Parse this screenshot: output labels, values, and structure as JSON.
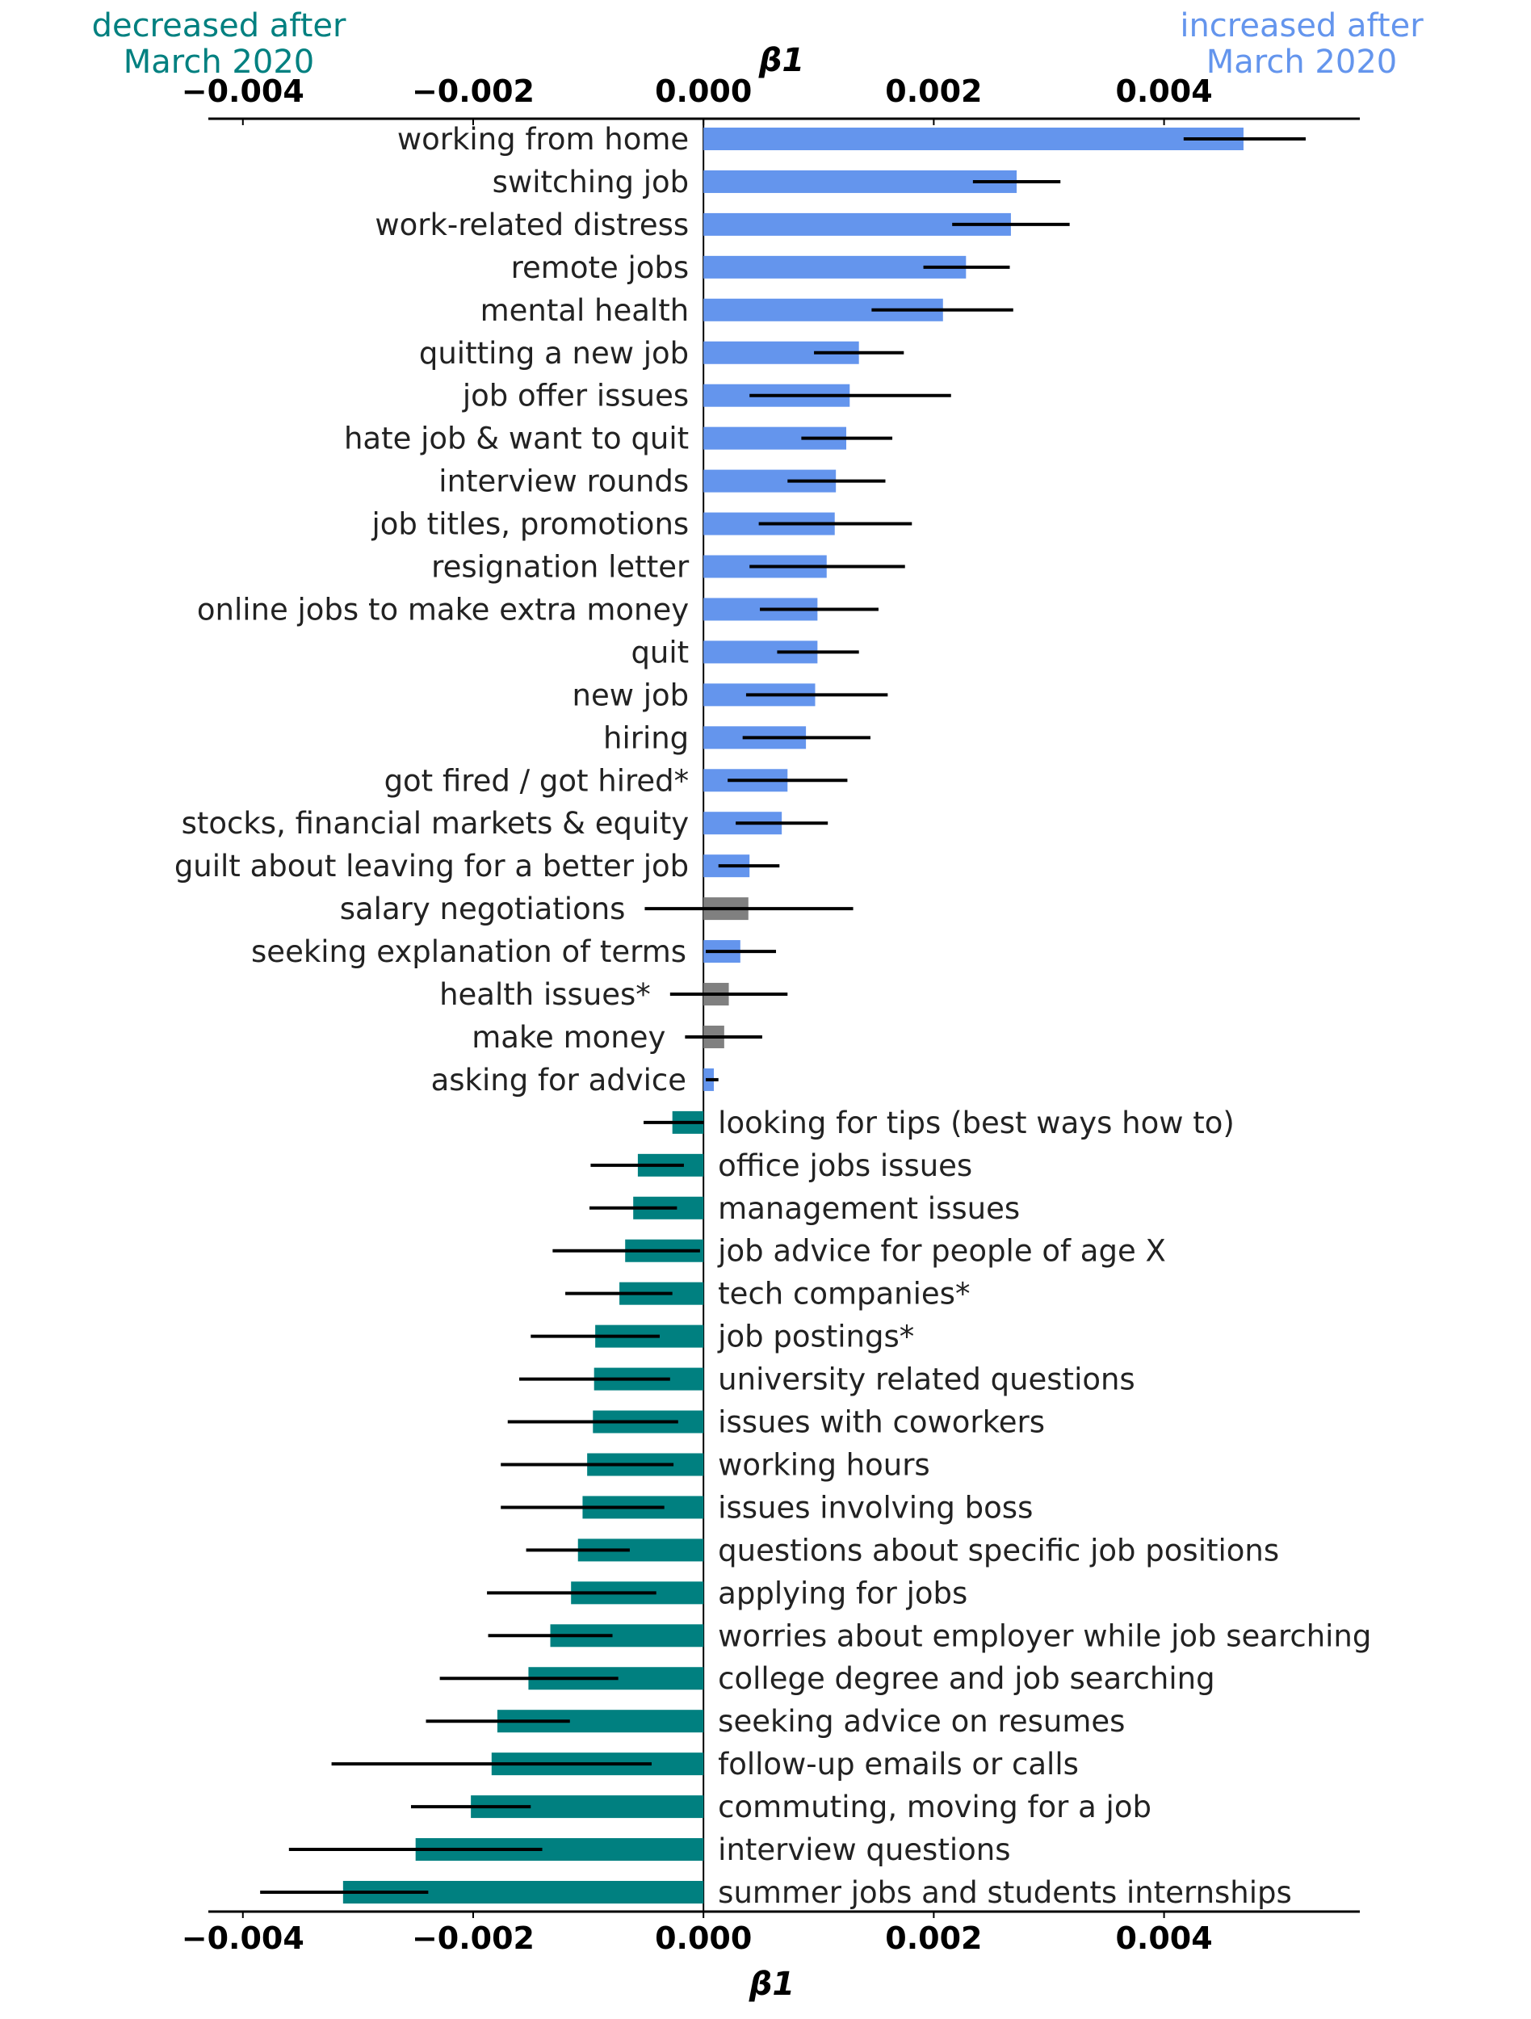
{
  "chart_data": {
    "type": "bar",
    "orientation": "horizontal",
    "xlabel": "β1",
    "xlim": [
      -0.0043,
      0.0057
    ],
    "xticks": [
      "−0.004",
      "−0.002",
      "0.000",
      "0.002",
      "0.004"
    ],
    "xtick_values": [
      -0.004,
      -0.002,
      0.0,
      0.002,
      0.004
    ],
    "grid": false,
    "annotations": {
      "decreased": [
        "decreased after",
        "March 2020"
      ],
      "increased": [
        "increased after",
        "March 2020"
      ]
    },
    "colors": {
      "increased": "#6495ED",
      "decreased": "#008080",
      "not_significant": "#808080",
      "error_bar": "#000000"
    },
    "categories": [
      {
        "label": "working from home",
        "value": 0.00469,
        "ci": [
          0.00417,
          0.00523
        ],
        "group": "increased"
      },
      {
        "label": "switching job",
        "value": 0.00272,
        "ci": [
          0.00234,
          0.0031
        ],
        "group": "increased"
      },
      {
        "label": "work-related distress",
        "value": 0.00267,
        "ci": [
          0.00216,
          0.00318
        ],
        "group": "increased"
      },
      {
        "label": "remote jobs",
        "value": 0.00228,
        "ci": [
          0.00191,
          0.00266
        ],
        "group": "increased"
      },
      {
        "label": "mental health",
        "value": 0.00208,
        "ci": [
          0.00146,
          0.00269
        ],
        "group": "increased"
      },
      {
        "label": "quitting a new job",
        "value": 0.00135,
        "ci": [
          0.00096,
          0.00174
        ],
        "group": "increased"
      },
      {
        "label": "job offer issues",
        "value": 0.00127,
        "ci": [
          0.0004,
          0.00215
        ],
        "group": "increased"
      },
      {
        "label": "hate job & want to quit",
        "value": 0.00124,
        "ci": [
          0.00085,
          0.00164
        ],
        "group": "increased"
      },
      {
        "label": "interview rounds",
        "value": 0.00115,
        "ci": [
          0.00073,
          0.00158
        ],
        "group": "increased"
      },
      {
        "label": "job titles, promotions",
        "value": 0.00114,
        "ci": [
          0.00048,
          0.00181
        ],
        "group": "increased"
      },
      {
        "label": "resignation letter",
        "value": 0.00107,
        "ci": [
          0.0004,
          0.00175
        ],
        "group": "increased"
      },
      {
        "label": "online jobs to make extra money",
        "value": 0.00099,
        "ci": [
          0.00049,
          0.00152
        ],
        "group": "increased"
      },
      {
        "label": "quit",
        "value": 0.00099,
        "ci": [
          0.00064,
          0.00135
        ],
        "group": "increased"
      },
      {
        "label": "new job",
        "value": 0.00097,
        "ci": [
          0.00037,
          0.0016
        ],
        "group": "increased"
      },
      {
        "label": "hiring",
        "value": 0.00089,
        "ci": [
          0.00034,
          0.00145
        ],
        "group": "increased"
      },
      {
        "label": "got fired / got hired*",
        "value": 0.00073,
        "ci": [
          0.00021,
          0.00125
        ],
        "group": "increased"
      },
      {
        "label": "stocks, financial markets & equity",
        "value": 0.00068,
        "ci": [
          0.00028,
          0.00108
        ],
        "group": "increased"
      },
      {
        "label": "guilt about leaving for a better job",
        "value": 0.0004,
        "ci": [
          0.00013,
          0.00066
        ],
        "group": "increased"
      },
      {
        "label": "salary negotiations",
        "value": 0.00039,
        "ci": [
          -0.00051,
          0.0013
        ],
        "group": "not_significant"
      },
      {
        "label": "seeking explanation of terms",
        "value": 0.00032,
        "ci": [
          2e-05,
          0.00063
        ],
        "group": "increased"
      },
      {
        "label": "health issues*",
        "value": 0.00022,
        "ci": [
          -0.00029,
          0.00073
        ],
        "group": "not_significant"
      },
      {
        "label": "make money",
        "value": 0.00018,
        "ci": [
          -0.00016,
          0.00051
        ],
        "group": "not_significant"
      },
      {
        "label": "asking for advice",
        "value": 9e-05,
        "ci": [
          2e-05,
          0.00013
        ],
        "group": "increased"
      },
      {
        "label": "looking for tips (best ways how to)",
        "value": -0.00027,
        "ci": [
          -0.00052,
          0.0
        ],
        "group": "decreased"
      },
      {
        "label": "office jobs issues",
        "value": -0.00057,
        "ci": [
          -0.00098,
          -0.00017
        ],
        "group": "decreased"
      },
      {
        "label": "management issues",
        "value": -0.00061,
        "ci": [
          -0.00099,
          -0.00023
        ],
        "group": "decreased"
      },
      {
        "label": "job advice for people of age X",
        "value": -0.00068,
        "ci": [
          -0.00131,
          -3e-05
        ],
        "group": "decreased"
      },
      {
        "label": "tech companies*",
        "value": -0.00073,
        "ci": [
          -0.0012,
          -0.00027
        ],
        "group": "decreased"
      },
      {
        "label": "job postings*",
        "value": -0.00094,
        "ci": [
          -0.0015,
          -0.00038
        ],
        "group": "decreased"
      },
      {
        "label": "university related questions",
        "value": -0.00095,
        "ci": [
          -0.0016,
          -0.00029
        ],
        "group": "decreased"
      },
      {
        "label": "issues with coworkers",
        "value": -0.00096,
        "ci": [
          -0.0017,
          -0.00022
        ],
        "group": "decreased"
      },
      {
        "label": "working hours",
        "value": -0.00101,
        "ci": [
          -0.00176,
          -0.00026
        ],
        "group": "decreased"
      },
      {
        "label": "issues involving boss",
        "value": -0.00105,
        "ci": [
          -0.00176,
          -0.00034
        ],
        "group": "decreased"
      },
      {
        "label": "questions about specific job positions",
        "value": -0.00109,
        "ci": [
          -0.00154,
          -0.00064
        ],
        "group": "decreased"
      },
      {
        "label": "applying for jobs",
        "value": -0.00115,
        "ci": [
          -0.00188,
          -0.00041
        ],
        "group": "decreased"
      },
      {
        "label": "worries about employer while job searching",
        "value": -0.00133,
        "ci": [
          -0.00187,
          -0.00079
        ],
        "group": "decreased"
      },
      {
        "label": "college degree and job searching",
        "value": -0.00152,
        "ci": [
          -0.00229,
          -0.00074
        ],
        "group": "decreased"
      },
      {
        "label": "seeking advice on resumes",
        "value": -0.00179,
        "ci": [
          -0.00241,
          -0.00116
        ],
        "group": "decreased"
      },
      {
        "label": "follow-up emails or calls",
        "value": -0.00184,
        "ci": [
          -0.00323,
          -0.00045
        ],
        "group": "decreased"
      },
      {
        "label": "commuting, moving for a job",
        "value": -0.00202,
        "ci": [
          -0.00254,
          -0.0015
        ],
        "group": "decreased"
      },
      {
        "label": "interview questions",
        "value": -0.0025,
        "ci": [
          -0.0036,
          -0.0014
        ],
        "group": "decreased"
      },
      {
        "label": "summer jobs and students internships",
        "value": -0.00313,
        "ci": [
          -0.00385,
          -0.00239
        ],
        "group": "decreased"
      }
    ]
  }
}
